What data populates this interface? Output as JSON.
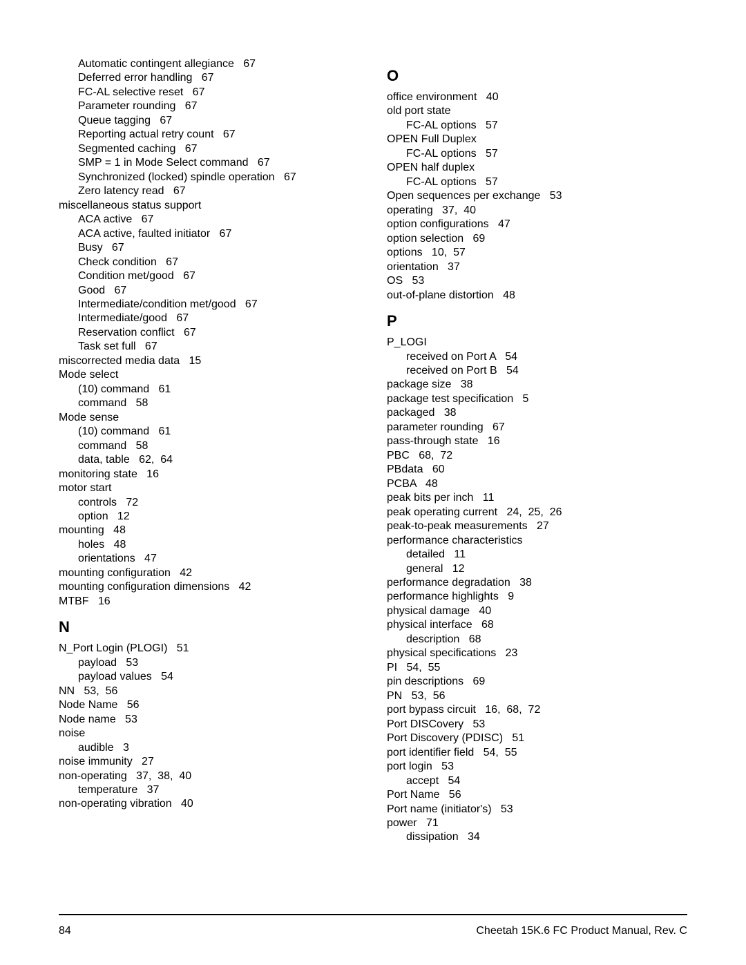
{
  "footer": {
    "page_number": "84",
    "doc_title": "Cheetah 15K.6 FC Product Manual, Rev. C"
  },
  "left_column": [
    {
      "type": "entry",
      "indent": 1,
      "text": "Automatic contingent allegiance",
      "pages": "67"
    },
    {
      "type": "entry",
      "indent": 1,
      "text": "Deferred error handling",
      "pages": "67"
    },
    {
      "type": "entry",
      "indent": 1,
      "text": "FC-AL selective reset",
      "pages": "67"
    },
    {
      "type": "entry",
      "indent": 1,
      "text": "Parameter rounding",
      "pages": "67"
    },
    {
      "type": "entry",
      "indent": 1,
      "text": "Queue tagging",
      "pages": "67"
    },
    {
      "type": "entry",
      "indent": 1,
      "text": "Reporting actual retry count",
      "pages": "67"
    },
    {
      "type": "entry",
      "indent": 1,
      "text": "Segmented caching",
      "pages": "67"
    },
    {
      "type": "entry",
      "indent": 1,
      "text": "SMP = 1 in Mode Select command",
      "pages": "67"
    },
    {
      "type": "entry",
      "indent": 1,
      "text": "Synchronized (locked) spindle operation",
      "pages": "67"
    },
    {
      "type": "entry",
      "indent": 1,
      "text": "Zero latency read",
      "pages": "67"
    },
    {
      "type": "entry",
      "indent": 0,
      "text": "miscellaneous status support",
      "pages": ""
    },
    {
      "type": "entry",
      "indent": 1,
      "text": "ACA active",
      "pages": "67"
    },
    {
      "type": "entry",
      "indent": 1,
      "text": "ACA active, faulted initiator",
      "pages": "67"
    },
    {
      "type": "entry",
      "indent": 1,
      "text": "Busy",
      "pages": "67"
    },
    {
      "type": "entry",
      "indent": 1,
      "text": "Check condition",
      "pages": "67"
    },
    {
      "type": "entry",
      "indent": 1,
      "text": "Condition met/good",
      "pages": "67"
    },
    {
      "type": "entry",
      "indent": 1,
      "text": "Good",
      "pages": "67"
    },
    {
      "type": "entry",
      "indent": 1,
      "text": "Intermediate/condition met/good",
      "pages": "67"
    },
    {
      "type": "entry",
      "indent": 1,
      "text": "Intermediate/good",
      "pages": "67"
    },
    {
      "type": "entry",
      "indent": 1,
      "text": "Reservation conflict",
      "pages": "67"
    },
    {
      "type": "entry",
      "indent": 1,
      "text": "Task set full",
      "pages": "67"
    },
    {
      "type": "entry",
      "indent": 0,
      "text": "miscorrected media data",
      "pages": "15"
    },
    {
      "type": "entry",
      "indent": 0,
      "text": "Mode select",
      "pages": ""
    },
    {
      "type": "entry",
      "indent": 1,
      "text": "(10) command",
      "pages": "61"
    },
    {
      "type": "entry",
      "indent": 1,
      "text": "command",
      "pages": "58"
    },
    {
      "type": "entry",
      "indent": 0,
      "text": "Mode sense",
      "pages": ""
    },
    {
      "type": "entry",
      "indent": 1,
      "text": "(10) command",
      "pages": "61"
    },
    {
      "type": "entry",
      "indent": 1,
      "text": "command",
      "pages": "58"
    },
    {
      "type": "entry",
      "indent": 1,
      "text": "data, table",
      "pages": "62,  64"
    },
    {
      "type": "entry",
      "indent": 0,
      "text": "monitoring state",
      "pages": "16"
    },
    {
      "type": "entry",
      "indent": 0,
      "text": "motor start",
      "pages": ""
    },
    {
      "type": "entry",
      "indent": 1,
      "text": "controls",
      "pages": "72"
    },
    {
      "type": "entry",
      "indent": 1,
      "text": "option",
      "pages": "12"
    },
    {
      "type": "entry",
      "indent": 0,
      "text": "mounting",
      "pages": "48"
    },
    {
      "type": "entry",
      "indent": 1,
      "text": "holes",
      "pages": "48"
    },
    {
      "type": "entry",
      "indent": 1,
      "text": "orientations",
      "pages": "47"
    },
    {
      "type": "entry",
      "indent": 0,
      "text": "mounting configuration",
      "pages": "42"
    },
    {
      "type": "entry",
      "indent": 0,
      "text": "mounting configuration dimensions",
      "pages": "42"
    },
    {
      "type": "entry",
      "indent": 0,
      "text": "MTBF",
      "pages": "16"
    },
    {
      "type": "letter",
      "text": "N"
    },
    {
      "type": "entry",
      "indent": 0,
      "text": "N_Port Login (PLOGI)",
      "pages": "51"
    },
    {
      "type": "entry",
      "indent": 1,
      "text": "payload",
      "pages": "53"
    },
    {
      "type": "entry",
      "indent": 1,
      "text": "payload values",
      "pages": "54"
    },
    {
      "type": "entry",
      "indent": 0,
      "text": "NN",
      "pages": "53,  56"
    },
    {
      "type": "entry",
      "indent": 0,
      "text": "Node Name",
      "pages": "56"
    },
    {
      "type": "entry",
      "indent": 0,
      "text": "Node name",
      "pages": "53"
    },
    {
      "type": "entry",
      "indent": 0,
      "text": "noise",
      "pages": ""
    },
    {
      "type": "entry",
      "indent": 1,
      "text": "audible",
      "pages": "3"
    },
    {
      "type": "entry",
      "indent": 0,
      "text": "noise immunity",
      "pages": "27"
    },
    {
      "type": "entry",
      "indent": 0,
      "text": "non-operating",
      "pages": "37,  38,  40"
    },
    {
      "type": "entry",
      "indent": 1,
      "text": "temperature",
      "pages": "37"
    },
    {
      "type": "entry",
      "indent": 0,
      "text": "non-operating vibration",
      "pages": "40"
    }
  ],
  "right_column": [
    {
      "type": "letter",
      "text": "O"
    },
    {
      "type": "entry",
      "indent": 0,
      "text": "office environment",
      "pages": "40"
    },
    {
      "type": "entry",
      "indent": 0,
      "text": "old port state",
      "pages": ""
    },
    {
      "type": "entry",
      "indent": 1,
      "text": "FC-AL options",
      "pages": "57"
    },
    {
      "type": "entry",
      "indent": 0,
      "text": "OPEN Full Duplex",
      "pages": ""
    },
    {
      "type": "entry",
      "indent": 1,
      "text": "FC-AL options",
      "pages": "57"
    },
    {
      "type": "entry",
      "indent": 0,
      "text": "OPEN half duplex",
      "pages": ""
    },
    {
      "type": "entry",
      "indent": 1,
      "text": "FC-AL options",
      "pages": "57"
    },
    {
      "type": "entry",
      "indent": 0,
      "text": "Open sequences per exchange",
      "pages": "53"
    },
    {
      "type": "entry",
      "indent": 0,
      "text": "operating",
      "pages": "37,  40"
    },
    {
      "type": "entry",
      "indent": 0,
      "text": "option configurations",
      "pages": "47"
    },
    {
      "type": "entry",
      "indent": 0,
      "text": "option selection",
      "pages": "69"
    },
    {
      "type": "entry",
      "indent": 0,
      "text": "options",
      "pages": "10,  57"
    },
    {
      "type": "entry",
      "indent": 0,
      "text": "orientation",
      "pages": "37"
    },
    {
      "type": "entry",
      "indent": 0,
      "text": "OS",
      "pages": "53"
    },
    {
      "type": "entry",
      "indent": 0,
      "text": "out-of-plane distortion",
      "pages": "48"
    },
    {
      "type": "letter",
      "text": "P"
    },
    {
      "type": "entry",
      "indent": 0,
      "text": "P_LOGI",
      "pages": ""
    },
    {
      "type": "entry",
      "indent": 1,
      "text": "received on Port A",
      "pages": "54"
    },
    {
      "type": "entry",
      "indent": 1,
      "text": "received on Port B",
      "pages": "54"
    },
    {
      "type": "entry",
      "indent": 0,
      "text": "package size",
      "pages": "38"
    },
    {
      "type": "entry",
      "indent": 0,
      "text": "package test specification",
      "pages": "5"
    },
    {
      "type": "entry",
      "indent": 0,
      "text": "packaged",
      "pages": "38"
    },
    {
      "type": "entry",
      "indent": 0,
      "text": "parameter rounding",
      "pages": "67"
    },
    {
      "type": "entry",
      "indent": 0,
      "text": "pass-through state",
      "pages": "16"
    },
    {
      "type": "entry",
      "indent": 0,
      "text": "PBC",
      "pages": "68,  72"
    },
    {
      "type": "entry",
      "indent": 0,
      "text": "PBdata",
      "pages": "60"
    },
    {
      "type": "entry",
      "indent": 0,
      "text": "PCBA",
      "pages": "48"
    },
    {
      "type": "entry",
      "indent": 0,
      "text": "peak bits per inch",
      "pages": "11"
    },
    {
      "type": "entry",
      "indent": 0,
      "text": "peak operating current",
      "pages": "24,  25,  26"
    },
    {
      "type": "entry",
      "indent": 0,
      "text": "peak-to-peak measurements",
      "pages": "27"
    },
    {
      "type": "entry",
      "indent": 0,
      "text": "performance characteristics",
      "pages": ""
    },
    {
      "type": "entry",
      "indent": 1,
      "text": "detailed",
      "pages": "11"
    },
    {
      "type": "entry",
      "indent": 1,
      "text": "general",
      "pages": "12"
    },
    {
      "type": "entry",
      "indent": 0,
      "text": "performance degradation",
      "pages": "38"
    },
    {
      "type": "entry",
      "indent": 0,
      "text": "performance highlights",
      "pages": "9"
    },
    {
      "type": "entry",
      "indent": 0,
      "text": "physical damage",
      "pages": "40"
    },
    {
      "type": "entry",
      "indent": 0,
      "text": "physical interface",
      "pages": "68"
    },
    {
      "type": "entry",
      "indent": 1,
      "text": "description",
      "pages": "68"
    },
    {
      "type": "entry",
      "indent": 0,
      "text": "physical specifications",
      "pages": "23"
    },
    {
      "type": "entry",
      "indent": 0,
      "text": "PI",
      "pages": "54,  55"
    },
    {
      "type": "entry",
      "indent": 0,
      "text": "pin descriptions",
      "pages": "69"
    },
    {
      "type": "entry",
      "indent": 0,
      "text": "PN",
      "pages": "53,  56"
    },
    {
      "type": "entry",
      "indent": 0,
      "text": "port bypass circuit",
      "pages": "16,  68,  72"
    },
    {
      "type": "entry",
      "indent": 0,
      "text": "Port DISCovery",
      "pages": "53"
    },
    {
      "type": "entry",
      "indent": 0,
      "text": "Port Discovery (PDISC)",
      "pages": "51"
    },
    {
      "type": "entry",
      "indent": 0,
      "text": "port identifier field",
      "pages": "54,  55"
    },
    {
      "type": "entry",
      "indent": 0,
      "text": "port login",
      "pages": "53"
    },
    {
      "type": "entry",
      "indent": 1,
      "text": "accept",
      "pages": "54"
    },
    {
      "type": "entry",
      "indent": 0,
      "text": "Port Name",
      "pages": "56"
    },
    {
      "type": "entry",
      "indent": 0,
      "text": "Port name (initiator's)",
      "pages": "53"
    },
    {
      "type": "entry",
      "indent": 0,
      "text": "power",
      "pages": "71"
    },
    {
      "type": "entry",
      "indent": 1,
      "text": "dissipation",
      "pages": "34"
    }
  ]
}
